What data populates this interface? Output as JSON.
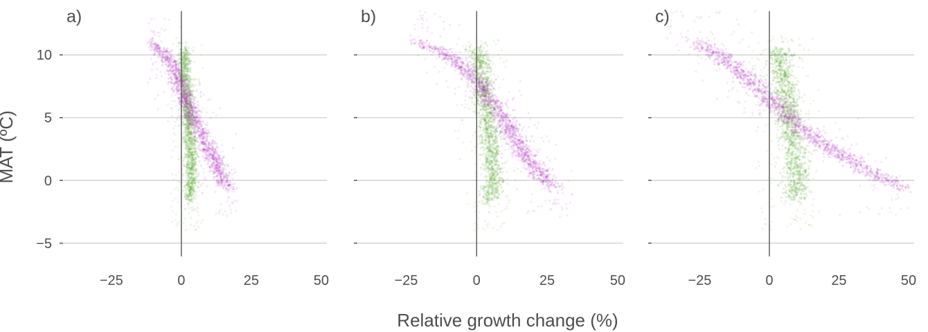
{
  "figure": {
    "ylabel": "MAT (ºC)",
    "xlabel": "Relative growth change (%)"
  },
  "colors": {
    "green": "#5aa829",
    "magenta": "#b52fc4",
    "grid": "#cfcfcf",
    "zero_line": "#555555",
    "text": "#4d4d4d"
  },
  "chart_data": [
    {
      "panel_label": "a)",
      "type": "scatter",
      "xlim": [
        -45,
        52
      ],
      "ylim": [
        -6.5,
        13.6
      ],
      "xticks": [
        -25,
        0,
        25,
        50
      ],
      "yticks": [
        -5,
        0,
        5,
        10
      ],
      "grid": "horizontal",
      "series": [
        {
          "color": "#5aa829",
          "trend_points": [
            [
              1,
              10.5
            ],
            [
              1.5,
              8
            ],
            [
              2.5,
              5
            ],
            [
              3.5,
              2
            ],
            [
              3.5,
              0
            ],
            [
              3,
              -1.5
            ]
          ],
          "spread_x": 1.5,
          "diffuse_x_range": [
            -4,
            8
          ],
          "diffuse_y_range": [
            -4,
            11
          ]
        },
        {
          "color": "#b52fc4",
          "trend_points": [
            [
              -10,
              11
            ],
            [
              -4,
              9.5
            ],
            [
              0,
              7.5
            ],
            [
              4,
              5
            ],
            [
              10,
              2.5
            ],
            [
              15,
              0
            ],
            [
              17,
              -0.5
            ]
          ],
          "spread_x": 2.2,
          "diffuse_x_range": [
            -12,
            20
          ],
          "diffuse_y_range": [
            -3,
            13
          ]
        }
      ]
    },
    {
      "panel_label": "b)",
      "type": "scatter",
      "xlim": [
        -45,
        52
      ],
      "ylim": [
        -6.5,
        13.6
      ],
      "xticks": [
        -25,
        0,
        25,
        50
      ],
      "yticks": [
        -5,
        0,
        5,
        10
      ],
      "grid": "horizontal",
      "series": [
        {
          "color": "#5aa829",
          "trend_points": [
            [
              0,
              10.5
            ],
            [
              2,
              8
            ],
            [
              4,
              5
            ],
            [
              5.5,
              2
            ],
            [
              6,
              0
            ],
            [
              5,
              -1.5
            ]
          ],
          "spread_x": 2.5,
          "diffuse_x_range": [
            -8,
            12
          ],
          "diffuse_y_range": [
            -4,
            11.5
          ]
        },
        {
          "color": "#b52fc4",
          "trend_points": [
            [
              -20,
              11
            ],
            [
              -10,
              10
            ],
            [
              0,
              8
            ],
            [
              8,
              5.5
            ],
            [
              16,
              2.5
            ],
            [
              24,
              0
            ],
            [
              28,
              -0.5
            ]
          ],
          "spread_x": 2.8,
          "diffuse_x_range": [
            -24,
            34
          ],
          "diffuse_y_range": [
            -3,
            13.5
          ]
        }
      ]
    },
    {
      "panel_label": "c)",
      "type": "scatter",
      "xlim": [
        -45,
        52
      ],
      "ylim": [
        -6.5,
        13.6
      ],
      "xticks": [
        -25,
        0,
        25,
        50
      ],
      "yticks": [
        -5,
        0,
        5,
        10
      ],
      "grid": "horizontal",
      "series": [
        {
          "color": "#5aa829",
          "trend_points": [
            [
              3,
              10.5
            ],
            [
              5,
              8
            ],
            [
              7,
              5
            ],
            [
              9,
              2
            ],
            [
              10,
              0
            ],
            [
              9,
              -1.5
            ]
          ],
          "spread_x": 3,
          "diffuse_x_range": [
            -10,
            18
          ],
          "diffuse_y_range": [
            -4,
            11.5
          ]
        },
        {
          "color": "#b52fc4",
          "trend_points": [
            [
              -25,
              11
            ],
            [
              -12,
              9
            ],
            [
              0,
              6.5
            ],
            [
              12,
              4
            ],
            [
              26,
              2
            ],
            [
              38,
              0.5
            ],
            [
              47,
              -0.5
            ]
          ],
          "spread_x": 3.5,
          "diffuse_x_range": [
            -40,
            50
          ],
          "diffuse_y_range": [
            -3,
            13.5
          ]
        }
      ]
    }
  ]
}
